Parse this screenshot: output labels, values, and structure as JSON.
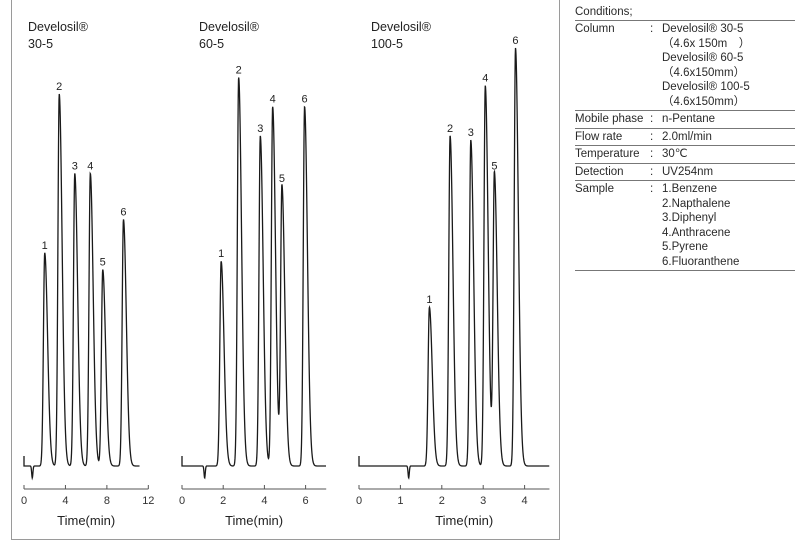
{
  "chart_data": [
    {
      "type": "line",
      "title": "Develosil® 30-5",
      "title_lines": [
        "Develosil®",
        "30-5"
      ],
      "xlabel": "Time(min)",
      "xlim": [
        0,
        12
      ],
      "xticks": [
        "0",
        "4",
        "8",
        "12"
      ],
      "grid": false,
      "peaks": [
        {
          "label": "1",
          "time": 2.0,
          "height": 51
        },
        {
          "label": "2",
          "time": 3.4,
          "height": 89
        },
        {
          "label": "3",
          "time": 4.9,
          "height": 70
        },
        {
          "label": "4",
          "time": 6.4,
          "height": 70
        },
        {
          "label": "5",
          "time": 7.6,
          "height": 47
        },
        {
          "label": "6",
          "time": 9.6,
          "height": 59
        }
      ]
    },
    {
      "type": "line",
      "title": "Develosil® 60-5",
      "title_lines": [
        "Develosil®",
        "60-5"
      ],
      "xlabel": "Time(min)",
      "xlim": [
        0,
        7
      ],
      "xticks": [
        "0",
        "2",
        "4",
        "6"
      ],
      "grid": false,
      "peaks": [
        {
          "label": "1",
          "time": 1.9,
          "height": 49
        },
        {
          "label": "2",
          "time": 2.75,
          "height": 93
        },
        {
          "label": "3",
          "time": 3.8,
          "height": 79
        },
        {
          "label": "4",
          "time": 4.4,
          "height": 86
        },
        {
          "label": "5",
          "time": 4.85,
          "height": 67
        },
        {
          "label": "6",
          "time": 5.95,
          "height": 86
        }
      ]
    },
    {
      "type": "line",
      "title": "Develosil® 100-5",
      "title_lines": [
        "Develosil®",
        "100-5"
      ],
      "xlabel": "Time(min)",
      "xlim": [
        0,
        4.6
      ],
      "xticks": [
        "0",
        "1",
        "2",
        "3",
        "4"
      ],
      "grid": false,
      "peaks": [
        {
          "label": "1",
          "time": 1.7,
          "height": 38
        },
        {
          "label": "2",
          "time": 2.2,
          "height": 79
        },
        {
          "label": "3",
          "time": 2.7,
          "height": 78
        },
        {
          "label": "4",
          "time": 3.05,
          "height": 91
        },
        {
          "label": "5",
          "time": 3.27,
          "height": 70
        },
        {
          "label": "6",
          "time": 3.78,
          "height": 100
        }
      ]
    }
  ],
  "conditions": {
    "header": "Conditions;",
    "colon": ":",
    "rows": [
      {
        "key": "Column",
        "values": [
          "Develosil® 30-5",
          "（4.6x 150m　）",
          "Develosil® 60-5",
          "（4.6x150mm）",
          "Develosil® 100-5",
          "（4.6x150mm）"
        ]
      },
      {
        "key": "Mobile phase",
        "values": [
          "n-Pentane"
        ]
      },
      {
        "key": "Flow rate",
        "values": [
          "2.0ml/min"
        ]
      },
      {
        "key": "Temperature",
        "values": [
          "30℃"
        ]
      },
      {
        "key": "Detection",
        "values": [
          "UV254nm"
        ]
      },
      {
        "key": "Sample",
        "values": [
          "1.Benzene",
          "2.Napthalene",
          "3.Diphenyl",
          "4.Anthracene",
          "5.Pyrene",
          "6.Fluoranthene"
        ]
      }
    ]
  },
  "colors": {
    "trace": "#1a1a1a",
    "axis": "#555555",
    "border": "#9a9a9a"
  }
}
